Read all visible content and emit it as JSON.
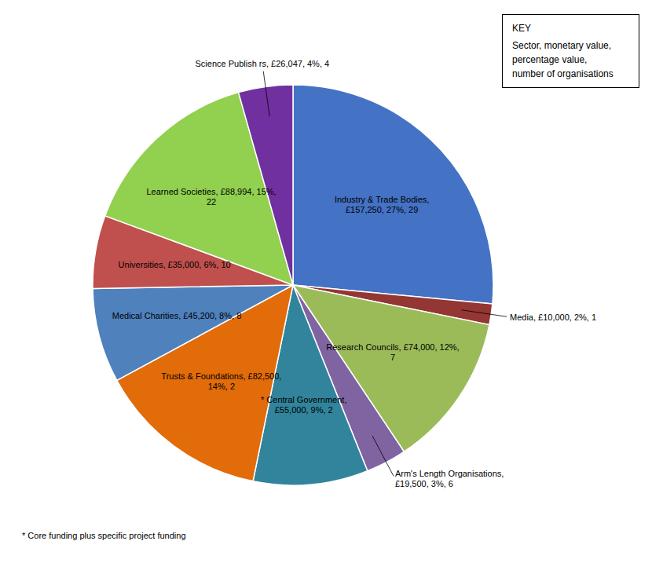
{
  "chart_data": {
    "type": "pie",
    "categories": [
      "Industry & Trade Bodies,\n£157,250, 27%, 29",
      "Media, £10,000, 2%, 1",
      "Research Councils, £74,000, 12%,\n7",
      "Arm's Length Organisations,\n£19,500, 3%, 6",
      "* Central Government,\n£55,000, 9%, 2",
      "Trusts & Foundations, £82,500,\n14%, 2",
      "Medical Charities, £45,200, 8%, 8",
      "Universities, £35,000, 6%, 10",
      "Learned Societies, £88,994, 15%,\n22",
      "Science Publish  rs, £26,047, 4%, 4"
    ],
    "values": [
      157250,
      10000,
      74000,
      19500,
      55000,
      82500,
      45200,
      35000,
      88994,
      26047
    ],
    "colors": [
      "#4472C4",
      "#943634",
      "#9BBB59",
      "#8064A2",
      "#31849B",
      "#E26B0A",
      "#4F81BD",
      "#C0504D",
      "#92D050",
      "#7030A0"
    ],
    "annotations": [
      "* Core funding plus specific project funding",
      "KEY",
      "Sector, monetary value,",
      "percentage value,",
      "number of organisations"
    ]
  }
}
